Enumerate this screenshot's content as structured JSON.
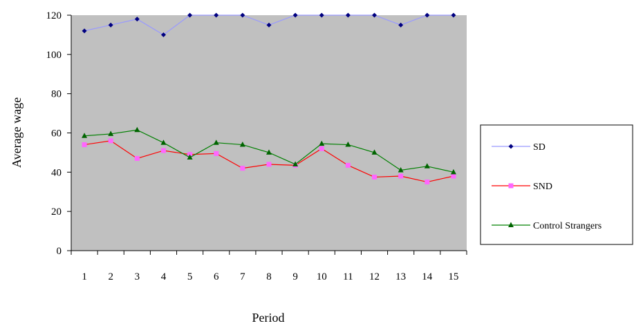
{
  "chart_data": {
    "type": "line",
    "title": "",
    "xlabel": "Period",
    "ylabel": "Average wage",
    "x": [
      1,
      2,
      3,
      4,
      5,
      6,
      7,
      8,
      9,
      10,
      11,
      12,
      13,
      14,
      15
    ],
    "ylim": [
      0,
      120
    ],
    "yticks": [
      0,
      20,
      40,
      60,
      80,
      100,
      120
    ],
    "grid": false,
    "plot_background": "#c0c0c0",
    "legend_position": "right",
    "series": [
      {
        "name": "SD",
        "color": "#9999ff",
        "marker_color": "#000080",
        "marker": "diamond",
        "values": [
          112,
          115,
          118,
          110,
          120,
          120,
          120,
          115,
          120,
          120,
          120,
          120,
          115,
          120,
          120
        ]
      },
      {
        "name": "SND",
        "color": "#ff0000",
        "marker_color": "#ff66ff",
        "marker": "square",
        "values": [
          54,
          56,
          47,
          51,
          49,
          49.5,
          42,
          44,
          43.5,
          52,
          43.5,
          37.5,
          38,
          35,
          38
        ]
      },
      {
        "name": "Control Strangers",
        "color": "#008000",
        "marker_color": "#006400",
        "marker": "triangle",
        "values": [
          58.5,
          59.5,
          61.5,
          55,
          47.5,
          55,
          54,
          50,
          44,
          54.5,
          54,
          50,
          41,
          43,
          40
        ]
      }
    ]
  }
}
